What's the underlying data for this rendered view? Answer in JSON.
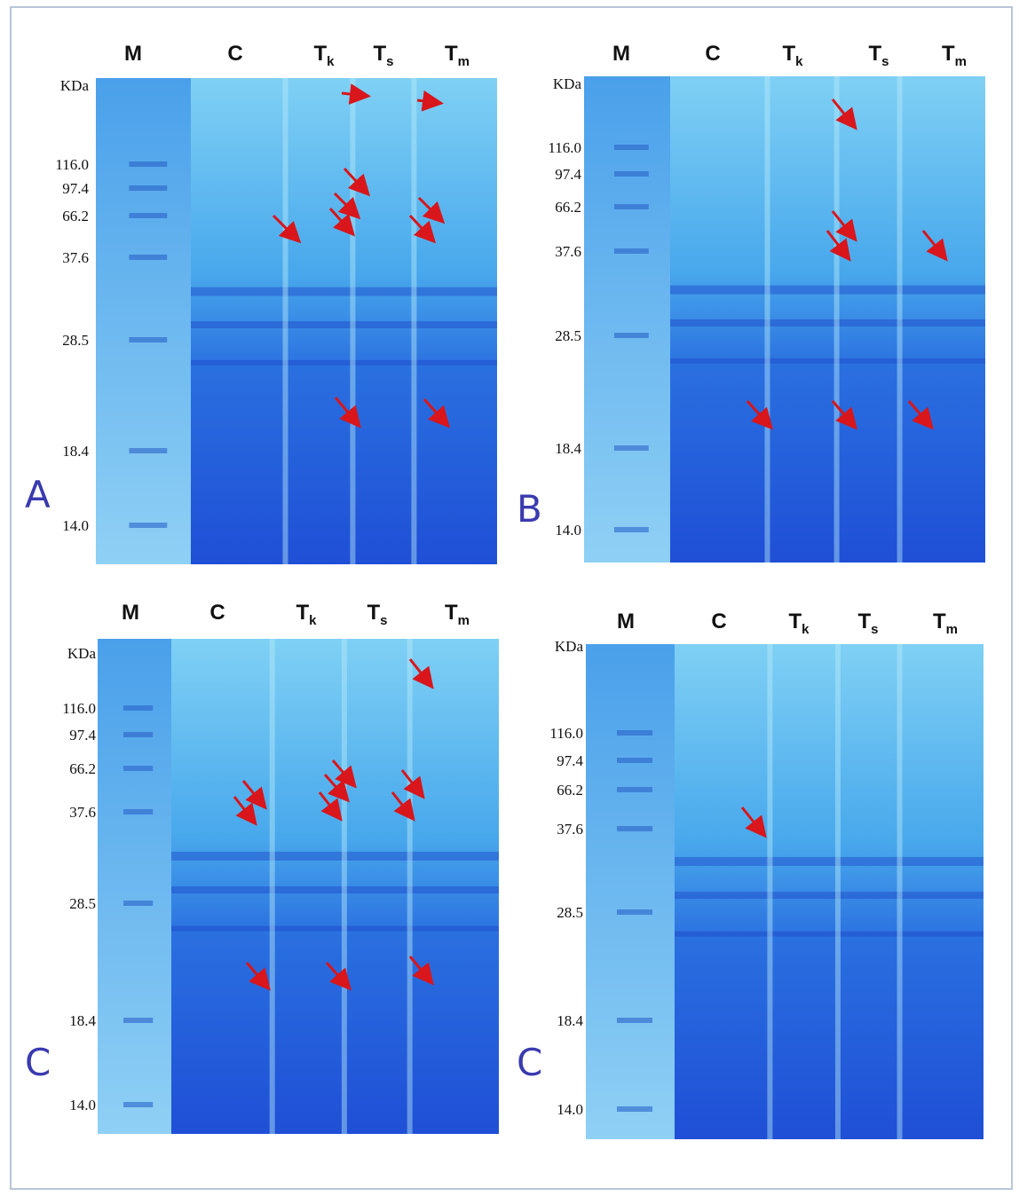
{
  "panels": [
    {
      "letter": "A",
      "lanes": [
        {
          "main": "M"
        },
        {
          "main": "C"
        },
        {
          "main": "T",
          "sub": "k"
        },
        {
          "main": "T",
          "sub": "s"
        },
        {
          "main": "T",
          "sub": "m"
        }
      ],
      "unit": "KDa",
      "markers": [
        "116.0",
        "97.4",
        "66.2",
        "37.6",
        "28.5",
        "18.4",
        "14.0"
      ]
    },
    {
      "letter": "B",
      "lanes": [
        {
          "main": "M"
        },
        {
          "main": "C"
        },
        {
          "main": "T",
          "sub": "k"
        },
        {
          "main": "T",
          "sub": "s"
        },
        {
          "main": "T",
          "sub": "m"
        }
      ],
      "unit": "KDa",
      "markers": [
        "116.0",
        "97.4",
        "66.2",
        "37.6",
        "28.5",
        "18.4",
        "14.0"
      ]
    },
    {
      "letter": "C",
      "lanes": [
        {
          "main": "M"
        },
        {
          "main": "C"
        },
        {
          "main": "T",
          "sub": "k"
        },
        {
          "main": "T",
          "sub": "s"
        },
        {
          "main": "T",
          "sub": "m"
        }
      ],
      "unit": "KDa",
      "markers": [
        "116.0",
        "97.4",
        "66.2",
        "37.6",
        "28.5",
        "18.4",
        "14.0"
      ]
    },
    {
      "letter": "C",
      "lanes": [
        {
          "main": "M"
        },
        {
          "main": "C"
        },
        {
          "main": "T",
          "sub": "k"
        },
        {
          "main": "T",
          "sub": "s"
        },
        {
          "main": "T",
          "sub": "m"
        }
      ],
      "unit": "KDa",
      "markers": [
        "116.0",
        "97.4",
        "66.2",
        "37.6",
        "28.5",
        "18.4",
        "14.0"
      ]
    }
  ]
}
